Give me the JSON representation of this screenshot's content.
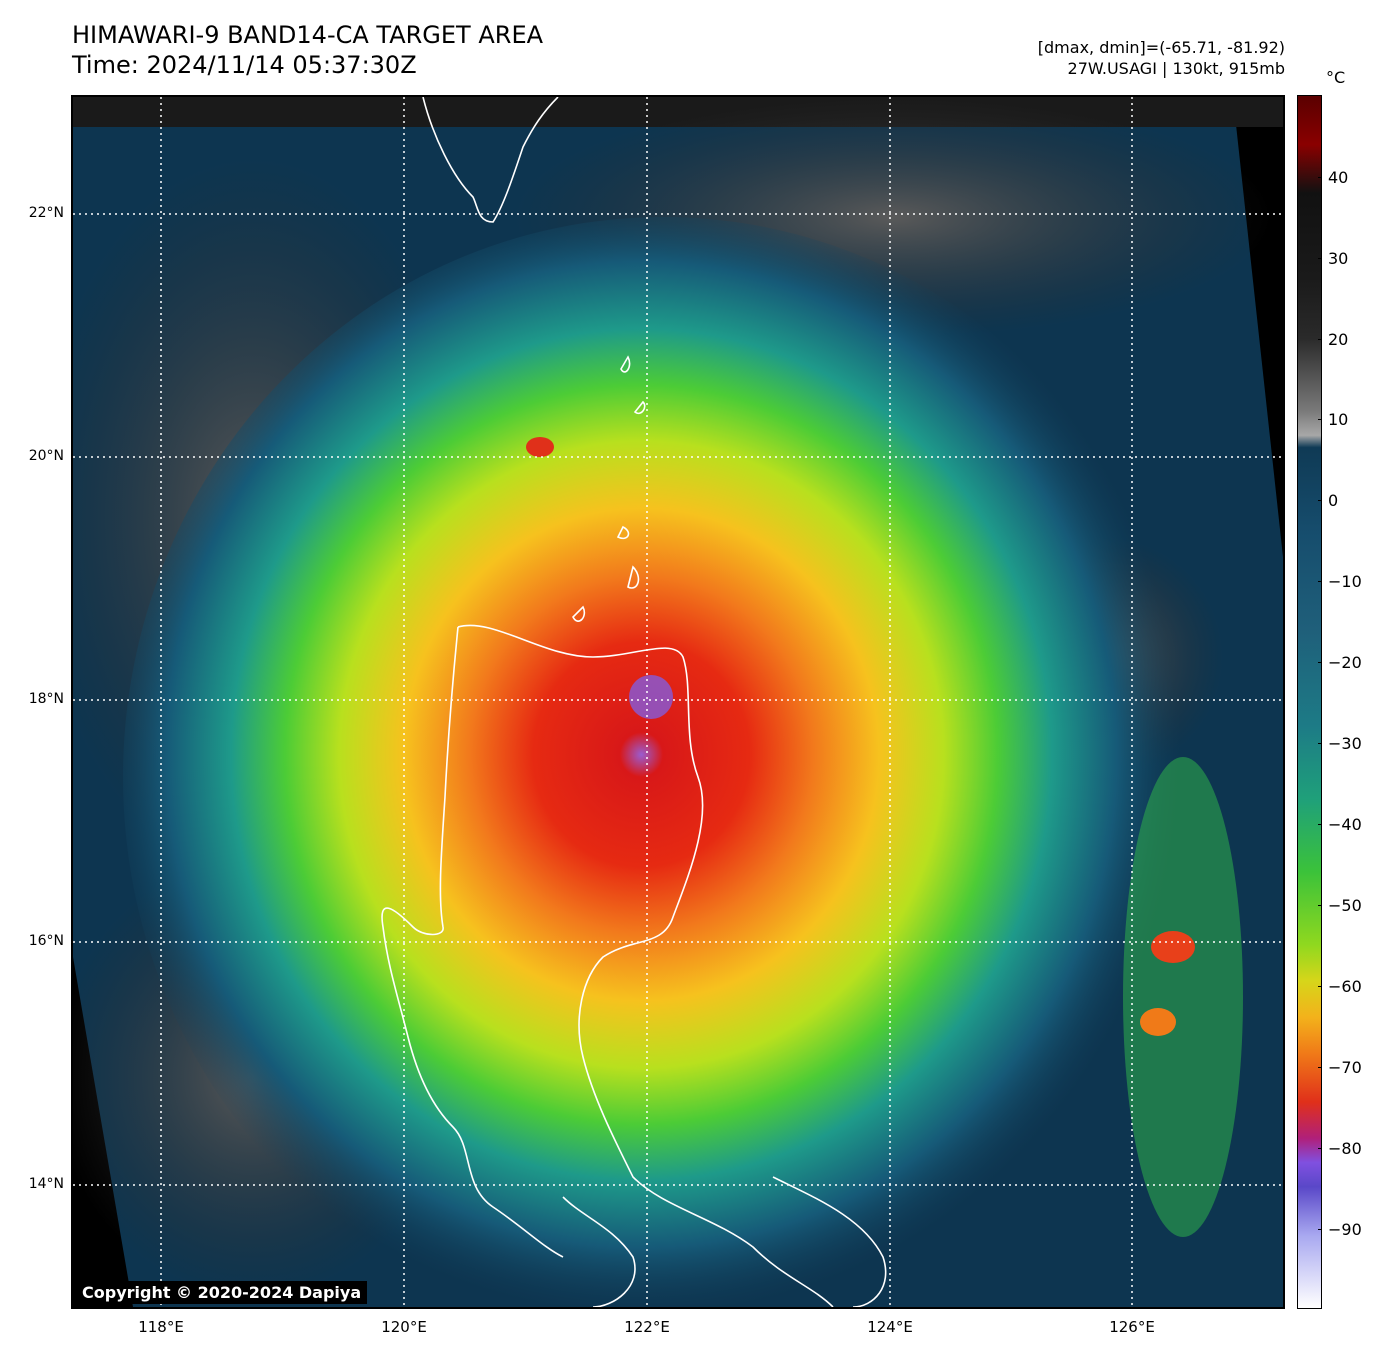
{
  "header": {
    "title_line1": "HIMAWARI-9 BAND14-CA TARGET AREA",
    "title_line2": "Time: 2024/11/14 05:37:30Z",
    "range_text": "[dmax, dmin]=(-65.71, -81.92)",
    "storm_text": "27W.USAGI | 130kt, 915mb"
  },
  "map": {
    "copyright": "Copyright © 2020-2024 Dapiya",
    "lat_labels": [
      "22°N",
      "20°N",
      "18°N",
      "16°N",
      "14°N"
    ],
    "lon_labels": [
      "118°E",
      "120°E",
      "122°E",
      "124°E",
      "126°E"
    ]
  },
  "colorbar": {
    "unit": "°C",
    "ticks": [
      "40",
      "30",
      "20",
      "10",
      "0",
      "−10",
      "−20",
      "−30",
      "−40",
      "−50",
      "−60",
      "−70",
      "−80",
      "−90"
    ]
  }
}
